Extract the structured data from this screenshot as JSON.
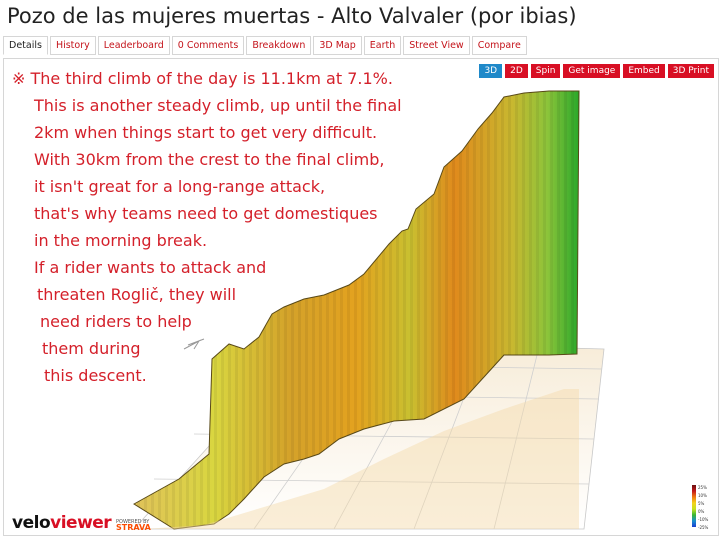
{
  "page_title": "Pozo de las mujeres muertas - Alto Valvaler (por ibias)",
  "tabs": [
    "Details",
    "History",
    "Leaderboard",
    "0 Comments",
    "Breakdown",
    "3D Map",
    "Earth",
    "Street View",
    "Compare"
  ],
  "active_tab": "Details",
  "toolbar": {
    "b3d": "3D",
    "b2d": "2D",
    "spin": "Spin",
    "get_image": "Get image",
    "embed": "Embed",
    "print3d": "3D Print"
  },
  "caption": [
    "※ The third climb of the day is 11.1km at 7.1%.",
    "This is another steady climb, up until the final",
    "2km when things start to get very difficult.",
    "With 30km from the crest to the final climb,",
    "it isn't great for a long-range attack,",
    "that's why teams need to get domestiques",
    "in the morning break.",
    "If a rider wants to attack and",
    "threaten Roglič, they will",
    "need riders to help",
    "them during",
    "this descent."
  ],
  "logo": {
    "part1": "velo",
    "part2": "viewer",
    "powered": "POWERED BY",
    "strava": "STRAVA"
  },
  "legend": {
    "labels": [
      "25%",
      "10%",
      "5%",
      "0%",
      "-10%",
      "-25%"
    ]
  },
  "colors": {
    "accent": "#d80f24",
    "caption": "#d4202a",
    "blue_btn": "#1f89c9"
  }
}
